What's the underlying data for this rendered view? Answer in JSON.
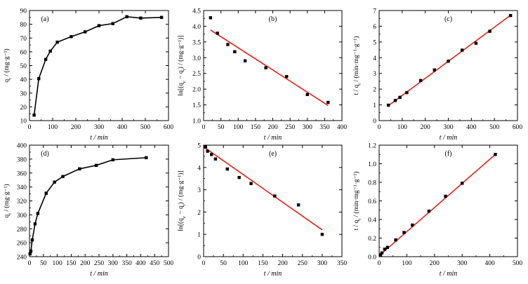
{
  "chart_data": [
    {
      "id": "a",
      "type": "line",
      "panel_label": "(a)",
      "xlabel": "t / min",
      "ylabel": "q_t / (mg·g⁻¹)",
      "xlim": [
        0,
        600
      ],
      "ylim": [
        10,
        90
      ],
      "xticks": [
        0,
        100,
        200,
        300,
        400,
        500,
        600
      ],
      "yticks": [
        10,
        20,
        30,
        40,
        50,
        60,
        70,
        80,
        90
      ],
      "series": [
        {
          "style": "black-line-square",
          "x": [
            20,
            40,
            70,
            90,
            120,
            180,
            240,
            300,
            360,
            420,
            480,
            570
          ],
          "y": [
            14,
            40.5,
            54.5,
            60.5,
            67,
            71,
            74.5,
            79,
            80.5,
            85.5,
            84.5,
            85
          ]
        }
      ]
    },
    {
      "id": "b",
      "type": "scatter",
      "panel_label": "(b)",
      "xlabel": "t / min",
      "ylabel": "ln[(q_e − q_t) / (mg·g⁻¹)]",
      "xlim": [
        0,
        400
      ],
      "ylim": [
        1.0,
        4.5
      ],
      "xticks": [
        0,
        50,
        100,
        150,
        200,
        250,
        300,
        350,
        400
      ],
      "yticks": [
        1.0,
        1.5,
        2.0,
        2.5,
        3.0,
        3.5,
        4.0,
        4.5
      ],
      "series": [
        {
          "style": "black-square",
          "x": [
            20,
            40,
            70,
            90,
            120,
            180,
            240,
            300,
            360
          ],
          "y": [
            4.27,
            3.78,
            3.42,
            3.19,
            2.9,
            2.68,
            2.4,
            1.83,
            1.58
          ]
        }
      ],
      "fit_line": {
        "x": [
          20,
          360
        ],
        "y": [
          3.88,
          1.48
        ]
      }
    },
    {
      "id": "c",
      "type": "scatter",
      "panel_label": "(c)",
      "xlabel": "t / min",
      "ylabel": "t / q_t / (min·mg⁻¹·g⁻¹)",
      "xlim": [
        0,
        600
      ],
      "ylim": [
        0,
        7
      ],
      "xticks": [
        0,
        100,
        200,
        300,
        400,
        500,
        600
      ],
      "yticks": [
        0,
        1,
        2,
        3,
        4,
        5,
        6,
        7
      ],
      "series": [
        {
          "style": "black-square",
          "x": [
            40,
            70,
            90,
            120,
            180,
            240,
            300,
            360,
            420,
            480,
            570
          ],
          "y": [
            0.98,
            1.28,
            1.48,
            1.78,
            2.55,
            3.22,
            3.78,
            4.48,
            4.92,
            5.68,
            6.68
          ]
        }
      ],
      "fit_line": {
        "x": [
          40,
          570
        ],
        "y": [
          0.95,
          6.7
        ]
      }
    },
    {
      "id": "d",
      "type": "line",
      "panel_label": "(d)",
      "xlabel": "t / min",
      "ylabel": "q_t / (mg·g⁻¹)",
      "xlim": [
        0,
        500
      ],
      "ylim": [
        240,
        400
      ],
      "xticks": [
        0,
        50,
        100,
        150,
        200,
        250,
        300,
        350,
        400,
        450,
        500
      ],
      "yticks": [
        240,
        260,
        280,
        300,
        320,
        340,
        360,
        380,
        400
      ],
      "series": [
        {
          "style": "black-line-square",
          "x": [
            2,
            5,
            10,
            20,
            30,
            60,
            90,
            120,
            180,
            240,
            300,
            420
          ],
          "y": [
            244,
            248,
            264,
            287,
            302,
            331,
            347,
            355,
            366,
            371,
            379,
            382
          ]
        }
      ]
    },
    {
      "id": "e",
      "type": "scatter",
      "panel_label": "(e)",
      "xlabel": "t / min",
      "ylabel": "ln[(q_e − q_t) / (mg·g⁻¹)]",
      "xlim": [
        0,
        350
      ],
      "ylim": [
        0,
        5
      ],
      "xticks": [
        0,
        50,
        100,
        150,
        200,
        250,
        300,
        350
      ],
      "yticks": [
        0,
        1,
        2,
        3,
        4,
        5
      ],
      "series": [
        {
          "style": "black-square",
          "x": [
            5,
            10,
            20,
            30,
            60,
            90,
            120,
            180,
            240,
            300
          ],
          "y": [
            4.92,
            4.73,
            4.58,
            4.38,
            3.93,
            3.55,
            3.28,
            2.72,
            2.32,
            1.0
          ]
        }
      ],
      "fit_line": {
        "x": [
          2,
          300
        ],
        "y": [
          4.9,
          1.2
        ]
      }
    },
    {
      "id": "f",
      "type": "scatter",
      "panel_label": "(f)",
      "xlabel": "t / min",
      "ylabel": "t / q_t / (min·mg⁻¹·g⁻¹)",
      "xlim": [
        0,
        500
      ],
      "ylim": [
        0,
        1.2
      ],
      "xticks": [
        0,
        100,
        200,
        300,
        400,
        500
      ],
      "yticks": [
        0,
        0.2,
        0.4,
        0.6,
        0.8,
        1.0,
        1.2
      ],
      "series": [
        {
          "style": "black-square",
          "x": [
            5,
            10,
            20,
            30,
            60,
            90,
            120,
            180,
            240,
            300,
            420
          ],
          "y": [
            0.02,
            0.04,
            0.08,
            0.1,
            0.18,
            0.26,
            0.34,
            0.49,
            0.65,
            0.79,
            1.1
          ]
        }
      ],
      "fit_line": {
        "x": [
          0,
          420
        ],
        "y": [
          0.01,
          1.1
        ]
      }
    }
  ]
}
